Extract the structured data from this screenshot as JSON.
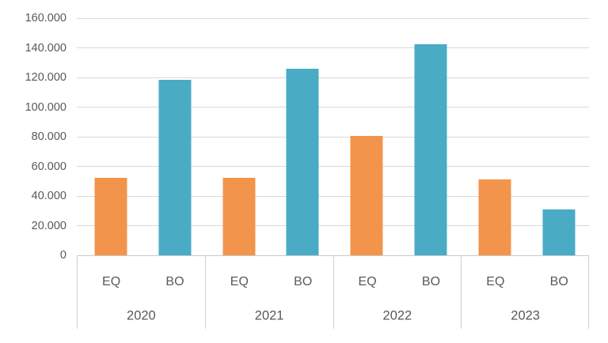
{
  "chart_data": {
    "type": "bar",
    "title": "",
    "categories": [
      "2020",
      "2021",
      "2022",
      "2023"
    ],
    "sub_categories": [
      "EQ",
      "BO"
    ],
    "series": [
      {
        "name": "EQ",
        "color": "#F2944B",
        "values": [
          52500,
          52500,
          80500,
          51000
        ]
      },
      {
        "name": "BO",
        "color": "#4AABC5",
        "values": [
          118500,
          126000,
          142500,
          31000
        ]
      }
    ],
    "ylim": [
      0,
      160000
    ],
    "y_tick_interval": 20000,
    "y_ticks": [
      {
        "value": 0,
        "label": "0"
      },
      {
        "value": 20000,
        "label": "20.000"
      },
      {
        "value": 40000,
        "label": "40.000"
      },
      {
        "value": 60000,
        "label": "60.000"
      },
      {
        "value": 80000,
        "label": "80.000"
      },
      {
        "value": 100000,
        "label": "100.000"
      },
      {
        "value": 120000,
        "label": "120.000"
      },
      {
        "value": 140000,
        "label": "140.000"
      },
      {
        "value": 160000,
        "label": "160.000"
      }
    ],
    "grid": true,
    "legend": "none",
    "colors": {
      "gridline": "#d9d9d9",
      "axis_line": "#c9c9c9",
      "separator": "#d0d0d0",
      "tick_label": "#595959",
      "background": "#ffffff"
    }
  }
}
